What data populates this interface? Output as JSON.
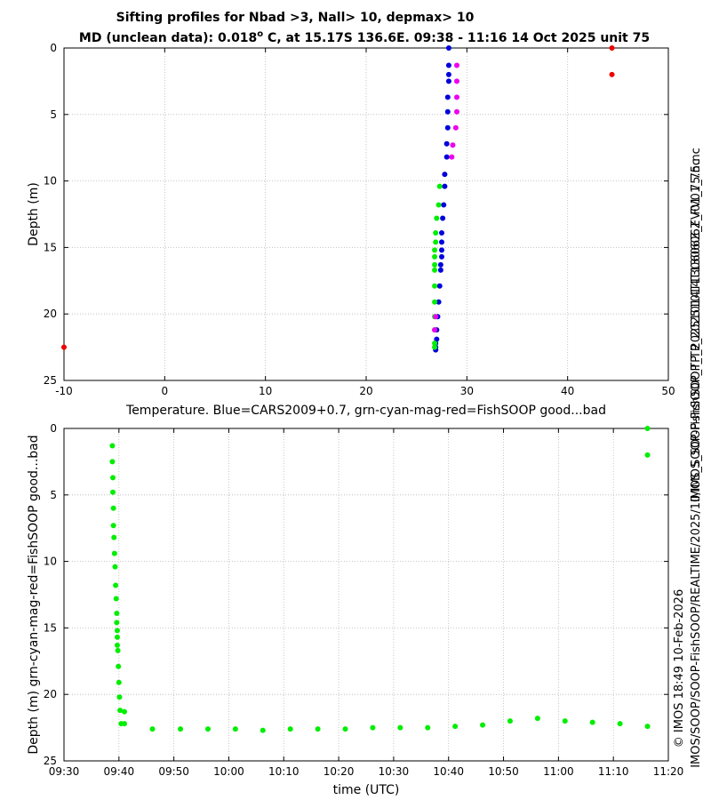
{
  "title": {
    "line1": "Sifting profiles for Nbad >3, Nall> 10, depmax> 10",
    "line2_pre": "MD (unclean data): 0.018",
    "line2_sup": "o",
    "line2_post": " C, at 15.17S 136.6E. 09:38 - 11:16 14 Oct 2025 unit 75"
  },
  "side_texts": {
    "filename": "IMOS_SOOP-FishSOOP_TP_20251014T130606Z_FV01_75.nc",
    "copyright": "© IMOS 18:49 10-Feb-2026",
    "path": "IMOS/SOOP/SOOP-FishSOOP/REALTIME/2025/10/IMOS_SOOP-FishSOOP_TP_20251014T130606Z_FV01_75.nc"
  },
  "colors": {
    "cars": "#0000dd",
    "good": "#00ee00",
    "mid": "#ee00ee",
    "bad": "#ee0000",
    "grid": "#b8b8b8"
  },
  "chart_data": [
    {
      "type": "scatter",
      "xlabel": "Temperature. Blue=CARS2009+0.7, grn-cyan-mag-red=FishSOOP good...bad",
      "ylabel": "Depth (m)",
      "xlim": [
        -10,
        50
      ],
      "ylim": [
        25,
        0
      ],
      "xticks": [
        -10,
        0,
        10,
        20,
        30,
        40,
        50
      ],
      "yticks": [
        0,
        5,
        10,
        15,
        20,
        25
      ],
      "grid": true,
      "series": [
        {
          "name": "CARS2009+0.7",
          "color": "cars",
          "points": [
            [
              28.2,
              0.0
            ],
            [
              28.2,
              1.3
            ],
            [
              28.2,
              2.0
            ],
            [
              28.2,
              2.5
            ],
            [
              28.1,
              3.7
            ],
            [
              28.1,
              4.8
            ],
            [
              28.1,
              6.0
            ],
            [
              28.0,
              7.2
            ],
            [
              28.0,
              8.2
            ],
            [
              27.8,
              9.5
            ],
            [
              27.8,
              10.4
            ],
            [
              27.7,
              11.8
            ],
            [
              27.6,
              12.8
            ],
            [
              27.5,
              13.9
            ],
            [
              27.5,
              14.6
            ],
            [
              27.5,
              15.2
            ],
            [
              27.5,
              15.7
            ],
            [
              27.4,
              16.3
            ],
            [
              27.4,
              16.7
            ],
            [
              27.3,
              17.9
            ],
            [
              27.2,
              19.1
            ],
            [
              27.1,
              20.2
            ],
            [
              27.0,
              21.2
            ],
            [
              27.0,
              21.9
            ],
            [
              26.9,
              22.2
            ],
            [
              26.9,
              22.5
            ],
            [
              26.9,
              22.7
            ]
          ]
        },
        {
          "name": "FishSOOP good",
          "color": "good",
          "points": [
            [
              27.3,
              10.4
            ],
            [
              27.2,
              11.8
            ],
            [
              27.0,
              12.8
            ],
            [
              26.9,
              13.9
            ],
            [
              26.9,
              14.6
            ],
            [
              26.8,
              15.2
            ],
            [
              26.8,
              15.7
            ],
            [
              26.8,
              16.3
            ],
            [
              26.8,
              16.7
            ],
            [
              26.8,
              17.9
            ],
            [
              26.8,
              19.1
            ],
            [
              26.8,
              20.2
            ],
            [
              26.8,
              21.2
            ],
            [
              26.8,
              22.2
            ],
            [
              26.8,
              22.5
            ]
          ]
        },
        {
          "name": "FishSOOP mid",
          "color": "mid",
          "points": [
            [
              29.0,
              1.3
            ],
            [
              29.0,
              2.5
            ],
            [
              29.0,
              3.7
            ],
            [
              29.0,
              4.8
            ],
            [
              28.9,
              6.0
            ],
            [
              28.6,
              7.3
            ],
            [
              28.5,
              8.2
            ],
            [
              26.9,
              20.2
            ],
            [
              26.8,
              21.2
            ]
          ]
        },
        {
          "name": "FishSOOP bad",
          "color": "bad",
          "points": [
            [
              44.4,
              0.0
            ],
            [
              44.4,
              2.0
            ],
            [
              -10.0,
              22.5
            ]
          ]
        }
      ]
    },
    {
      "type": "scatter",
      "xlabel": "time (UTC)",
      "ylabel": "Depth (m) grn-cyan-mag-red=FishSOOP good...bad",
      "xlim": [
        570,
        680
      ],
      "ylim": [
        25,
        0
      ],
      "xticks": [
        570,
        580,
        590,
        600,
        610,
        620,
        630,
        640,
        650,
        660,
        670,
        680
      ],
      "xticklabels": [
        "09:30",
        "09:40",
        "09:50",
        "10:00",
        "10:10",
        "10:20",
        "10:30",
        "10:40",
        "10:50",
        "11:00",
        "11:10",
        "11:20"
      ],
      "yticks": [
        0,
        5,
        10,
        15,
        20,
        25
      ],
      "grid": true,
      "series": [
        {
          "name": "FishSOOP good",
          "color": "good",
          "points": [
            [
              578.8,
              1.3
            ],
            [
              578.8,
              2.5
            ],
            [
              578.9,
              3.7
            ],
            [
              578.9,
              4.8
            ],
            [
              579.0,
              6.0
            ],
            [
              579.0,
              7.3
            ],
            [
              579.1,
              8.2
            ],
            [
              579.2,
              9.4
            ],
            [
              579.3,
              10.4
            ],
            [
              579.4,
              11.8
            ],
            [
              579.5,
              12.8
            ],
            [
              579.6,
              13.9
            ],
            [
              579.6,
              14.6
            ],
            [
              579.7,
              15.2
            ],
            [
              579.7,
              15.7
            ],
            [
              579.7,
              16.3
            ],
            [
              579.8,
              16.7
            ],
            [
              579.9,
              17.9
            ],
            [
              580.0,
              19.1
            ],
            [
              580.1,
              20.2
            ],
            [
              580.2,
              21.2
            ],
            [
              581.0,
              21.3
            ],
            [
              580.4,
              22.2
            ],
            [
              581.0,
              22.2
            ],
            [
              586.1,
              22.6
            ],
            [
              591.2,
              22.6
            ],
            [
              596.2,
              22.6
            ],
            [
              601.2,
              22.6
            ],
            [
              606.2,
              22.7
            ],
            [
              611.2,
              22.6
            ],
            [
              616.2,
              22.6
            ],
            [
              621.2,
              22.6
            ],
            [
              626.2,
              22.5
            ],
            [
              631.2,
              22.5
            ],
            [
              636.2,
              22.5
            ],
            [
              641.2,
              22.4
            ],
            [
              646.2,
              22.3
            ],
            [
              651.2,
              22.0
            ],
            [
              656.2,
              21.8
            ],
            [
              661.2,
              22.0
            ],
            [
              666.2,
              22.1
            ],
            [
              671.2,
              22.2
            ],
            [
              676.2,
              22.4
            ],
            [
              676.2,
              0.0
            ],
            [
              676.2,
              2.0
            ]
          ]
        }
      ]
    }
  ]
}
